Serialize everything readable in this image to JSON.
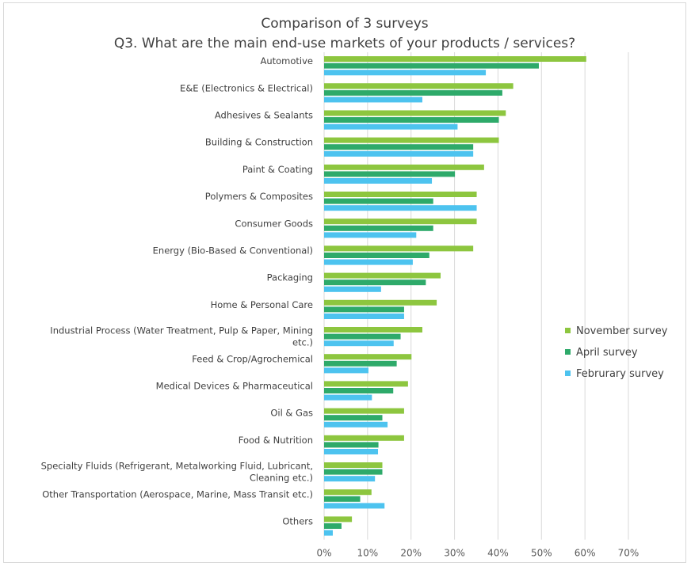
{
  "chart_data": {
    "type": "bar",
    "orientation": "horizontal",
    "title": "Comparison of 3 surveys",
    "subtitle": "Q3. What are the main end-use markets of your products / services?",
    "categories": [
      "Automotive",
      "E&E (Electronics & Electrical)",
      "Adhesives & Sealants",
      "Building & Construction",
      "Paint & Coating",
      "Polymers & Composites",
      "Consumer Goods",
      "Energy (Bio-Based & Conventional)",
      "Packaging",
      "Home & Personal Care",
      "Industrial Process (Water Treatment, Pulp & Paper, Mining etc.)",
      "Feed & Crop/Agrochemical",
      "Medical Devices & Pharmaceutical",
      "Oil & Gas",
      "Food & Nutrition",
      "Specialty Fluids (Refrigerant, Metalworking Fluid, Lubricant, Cleaning etc.)",
      "Other Transportation (Aerospace, Marine, Mass Transit etc.)",
      "Others"
    ],
    "series": [
      {
        "name": "November survey",
        "color": "#8dc63f",
        "values": [
          60.3,
          43.5,
          41.8,
          40.2,
          36.8,
          35.1,
          35.1,
          34.3,
          26.8,
          25.9,
          22.6,
          20.1,
          19.3,
          18.4,
          18.4,
          13.4,
          10.9,
          6.4
        ]
      },
      {
        "name": "April survey",
        "color": "#2eaa6a",
        "values": [
          49.4,
          41.0,
          40.2,
          34.3,
          30.1,
          25.1,
          25.1,
          24.2,
          23.4,
          18.4,
          17.6,
          16.7,
          15.9,
          13.4,
          12.5,
          13.4,
          8.3,
          4.0
        ]
      },
      {
        "name": "Februrary survey",
        "color": "#4dc3ef",
        "values": [
          37.2,
          22.6,
          30.7,
          34.3,
          24.8,
          35.1,
          21.2,
          20.4,
          13.1,
          18.4,
          16.0,
          10.2,
          11.0,
          14.6,
          12.4,
          11.7,
          13.9,
          2.0
        ]
      }
    ],
    "xlim": [
      0,
      70
    ],
    "x_ticks": [
      "0%",
      "10%",
      "20%",
      "30%",
      "40%",
      "50%",
      "60%",
      "70%"
    ],
    "grid": true,
    "legend_position": "right"
  }
}
